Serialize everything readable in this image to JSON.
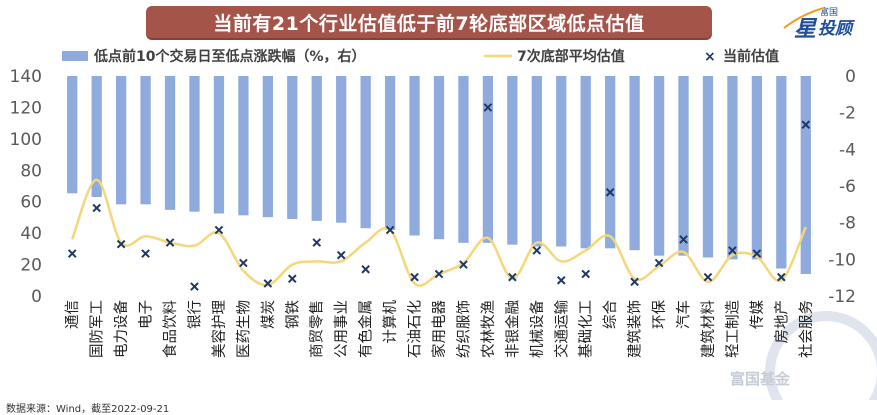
{
  "title": "当前有21个行业估值低于前7轮底部区域低点估值",
  "logo": {
    "top_text": "富国",
    "brand_char": "星",
    "brand_tail": "投顾"
  },
  "watermark": "富国基金",
  "source_note": "数据来源：Wind，截至2022-09-21",
  "colors": {
    "bar": "#8faadc",
    "line": "#f5d77a",
    "marker": "#1f3864",
    "banner": "#a5544a",
    "axis_text": "#595959"
  },
  "chart_data": {
    "type": "bar",
    "categories": [
      "通信",
      "国防军工",
      "电力设备",
      "电子",
      "食品饮料",
      "银行",
      "美容护理",
      "医药生物",
      "煤炭",
      "钢铁",
      "商贸零售",
      "公用事业",
      "有色金属",
      "计算机",
      "石油石化",
      "家用电器",
      "纺织服饰",
      "农林牧渔",
      "非银金融",
      "机械设备",
      "交通运输",
      "基础化工",
      "综合",
      "建筑装饰",
      "环保",
      "汽车",
      "建筑材料",
      "轻工制造",
      "传媒",
      "房地产",
      "社会服务"
    ],
    "legend": [
      {
        "key": "bars",
        "label": "低点前10个交易日至低点涨跌幅（%，右）",
        "icon": "bar-swatch"
      },
      {
        "key": "line",
        "label": "7次底部平均估值",
        "icon": "line-swatch"
      },
      {
        "key": "markers",
        "label": "当前估值",
        "icon": "x-marker"
      }
    ],
    "series": [
      {
        "key": "bars",
        "type": "bar",
        "axis": "right",
        "values": [
          -6.4,
          -6.6,
          -7.0,
          -7.0,
          -7.3,
          -7.4,
          -7.5,
          -7.6,
          -7.7,
          -7.8,
          -7.9,
          -8.0,
          -8.3,
          -8.4,
          -8.7,
          -8.9,
          -9.1,
          -9.1,
          -9.2,
          -9.3,
          -9.3,
          -9.4,
          -9.4,
          -9.5,
          -9.8,
          -9.8,
          -9.9,
          -10.0,
          -10.0,
          -10.5,
          -10.8
        ]
      },
      {
        "key": "line",
        "type": "line",
        "axis": "left",
        "values": [
          36,
          74,
          34,
          38,
          34,
          32,
          40,
          16,
          7,
          20,
          22,
          22,
          34,
          42,
          8,
          14,
          21,
          37,
          11,
          34,
          22,
          29,
          38,
          11,
          19,
          28,
          9,
          26,
          25,
          10,
          44
        ]
      },
      {
        "key": "markers",
        "type": "scatter",
        "axis": "left",
        "values": [
          27,
          56,
          33,
          27,
          34,
          6,
          42,
          21,
          8,
          11,
          34,
          26,
          17,
          42,
          12,
          14,
          20,
          120,
          12,
          29,
          10,
          14,
          66,
          9,
          21,
          36,
          12,
          29,
          27,
          12,
          109
        ]
      }
    ],
    "y_left": {
      "min": 0,
      "max": 140,
      "ticks": [
        0,
        20,
        40,
        60,
        80,
        100,
        120,
        140
      ]
    },
    "y_right": {
      "min": -12,
      "max": 0,
      "ticks": [
        0,
        -2,
        -4,
        -6,
        -8,
        -10,
        -12
      ]
    }
  }
}
